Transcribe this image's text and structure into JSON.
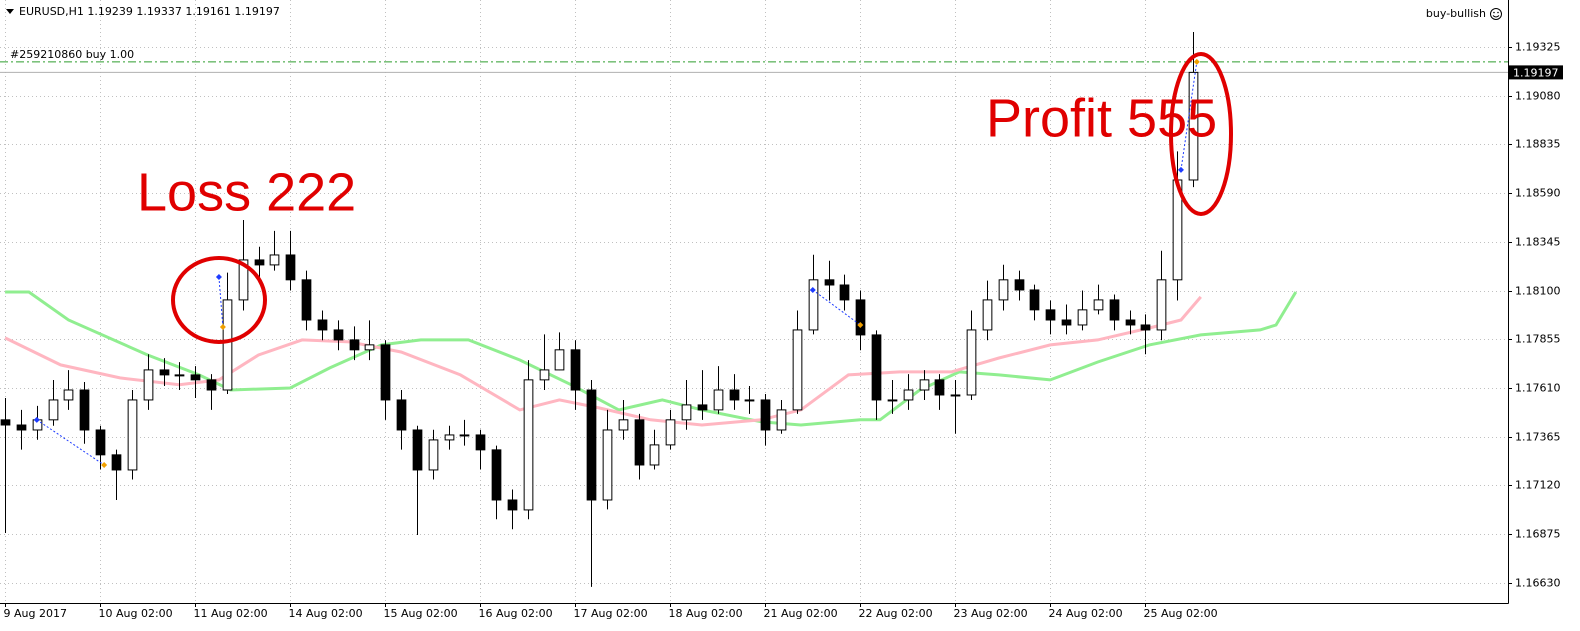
{
  "chart_data": {
    "type": "candlestick",
    "title": "EURUSD,H1  1.19239 1.19337 1.19161 1.19197",
    "order_label": "#259210860 buy 1.00",
    "expert_label": "buy-bullish",
    "annotations": [
      "Loss 222",
      "Profit 555"
    ],
    "order_level": 1.1925,
    "last_price": 1.19197,
    "grid": true,
    "xlim": [
      -1.3,
      379.6
    ],
    "ylim": [
      1.16529,
      1.19561
    ],
    "xticks": [
      {
        "value": 0,
        "label": "9 Aug 2017"
      },
      {
        "value": 24,
        "label": "10 Aug 02:00"
      },
      {
        "value": 48,
        "label": "11 Aug 02:00"
      },
      {
        "value": 72,
        "label": "14 Aug 02:00"
      },
      {
        "value": 96,
        "label": "15 Aug 02:00"
      },
      {
        "value": 120,
        "label": "16 Aug 02:00"
      },
      {
        "value": 144,
        "label": "17 Aug 02:00"
      },
      {
        "value": 168,
        "label": "18 Aug 02:00"
      },
      {
        "value": 192,
        "label": "21 Aug 02:00"
      },
      {
        "value": 216,
        "label": "22 Aug 02:00"
      },
      {
        "value": 240,
        "label": "23 Aug 02:00"
      },
      {
        "value": 264,
        "label": "24 Aug 02:00"
      },
      {
        "value": 288,
        "label": "25 Aug 02:00"
      }
    ],
    "yticks": [
      1.19325,
      {
        "value": 1.1908,
        "label": "1.19080"
      },
      1.18835,
      {
        "value": 1.1859,
        "label": "1.18590"
      },
      1.18345,
      {
        "value": 1.181,
        "label": "1.18100"
      },
      1.17855,
      {
        "value": 1.1761,
        "label": "1.17610"
      },
      1.17365,
      {
        "value": 1.1712,
        "label": "1.17120"
      },
      1.16875,
      {
        "value": 1.1663,
        "label": "1.16630"
      }
    ],
    "x": [
      0,
      4,
      8,
      12,
      16,
      20,
      24,
      28,
      32,
      36,
      40,
      44,
      48,
      52,
      56,
      60,
      64,
      68,
      72,
      76,
      80,
      84,
      88,
      92,
      96,
      100,
      104,
      108,
      112,
      116,
      120,
      124,
      128,
      132,
      136,
      140,
      144,
      148,
      152,
      156,
      160,
      164,
      168,
      172,
      176,
      180,
      184,
      188,
      192,
      196,
      200,
      204,
      208,
      212,
      216,
      220,
      224,
      228,
      232,
      236,
      240,
      244,
      248,
      252,
      256,
      260,
      264,
      268,
      272,
      276,
      280,
      284,
      288,
      292,
      296,
      300
    ],
    "open": [
      1.1745,
      1.17424,
      1.17399,
      1.1745,
      1.1755,
      1.176,
      1.17399,
      1.17274,
      1.17198,
      1.1755,
      1.17701,
      1.17676,
      1.17676,
      1.17651,
      1.176,
      1.18053,
      1.18254,
      1.18229,
      1.18279,
      1.18154,
      1.17952,
      1.17902,
      1.17852,
      1.17802,
      1.17827,
      1.1755,
      1.17399,
      1.17198,
      1.17349,
      1.17374,
      1.17374,
      1.17299,
      1.17047,
      1.16997,
      1.17651,
      1.17701,
      1.17802,
      1.176,
      1.17047,
      1.17399,
      1.1745,
      1.17223,
      1.17324,
      1.1745,
      1.17525,
      1.175,
      1.176,
      1.1755,
      1.1755,
      1.17399,
      1.175,
      1.17902,
      1.18154,
      1.18128,
      1.18053,
      1.17877,
      1.1755,
      1.1755,
      1.176,
      1.17651,
      1.17575,
      1.17575,
      1.17902,
      1.18053,
      1.18154,
      1.18103,
      1.18003,
      1.17952,
      1.17927,
      1.18003,
      1.18053,
      1.17952,
      1.17927,
      1.17902,
      1.18154,
      1.18656
    ],
    "high": [
      1.1756,
      1.175,
      1.1752,
      1.1765,
      1.177,
      1.1764,
      1.1742,
      1.173,
      1.176,
      1.1778,
      1.1776,
      1.1774,
      1.1772,
      1.1768,
      1.1819,
      1.18455,
      1.1832,
      1.184,
      1.184,
      1.182,
      1.18,
      1.1795,
      1.1792,
      1.1795,
      1.1785,
      1.176,
      1.1742,
      1.174,
      1.1742,
      1.1745,
      1.174,
      1.1732,
      1.171,
      1.1775,
      1.1788,
      1.1789,
      1.1785,
      1.1765,
      1.175,
      1.1755,
      1.1748,
      1.174,
      1.175,
      1.1765,
      1.177,
      1.1772,
      1.1768,
      1.1762,
      1.1758,
      1.1755,
      1.18,
      1.1828,
      1.1825,
      1.1818,
      1.181,
      1.179,
      1.1765,
      1.1768,
      1.177,
      1.1768,
      1.1765,
      1.18,
      1.1815,
      1.1823,
      1.182,
      1.1813,
      1.1805,
      1.1803,
      1.181,
      1.1813,
      1.1808,
      1.18,
      1.1798,
      1.183,
      1.188,
      1.194
    ],
    "low": [
      1.16881,
      1.173,
      1.1735,
      1.1742,
      1.175,
      1.1733,
      1.172,
      1.17047,
      1.1715,
      1.175,
      1.1762,
      1.176,
      1.1756,
      1.175,
      1.1758,
      1.18,
      1.1815,
      1.182,
      1.181,
      1.179,
      1.1785,
      1.178,
      1.1775,
      1.1775,
      1.1745,
      1.173,
      1.16871,
      1.1715,
      1.173,
      1.1732,
      1.172,
      1.1695,
      1.169,
      1.1695,
      1.176,
      1.177,
      1.175,
      1.1661,
      1.17,
      1.1735,
      1.1715,
      1.172,
      1.173,
      1.174,
      1.1745,
      1.1748,
      1.175,
      1.1748,
      1.1732,
      1.1738,
      1.1748,
      1.1788,
      1.1805,
      1.18,
      1.178,
      1.1745,
      1.1748,
      1.175,
      1.1755,
      1.175,
      1.1738,
      1.1755,
      1.1785,
      1.18,
      1.1805,
      1.1795,
      1.1788,
      1.1788,
      1.179,
      1.1798,
      1.179,
      1.1788,
      1.1778,
      1.1785,
      1.1805,
      1.1862
    ],
    "close": [
      1.17424,
      1.17399,
      1.1745,
      1.1755,
      1.176,
      1.17399,
      1.17274,
      1.17198,
      1.1755,
      1.17701,
      1.17676,
      1.17676,
      1.17651,
      1.176,
      1.18053,
      1.18254,
      1.18229,
      1.18279,
      1.18154,
      1.17952,
      1.17902,
      1.17852,
      1.17802,
      1.17827,
      1.1755,
      1.17399,
      1.17198,
      1.17349,
      1.17374,
      1.17374,
      1.17299,
      1.17047,
      1.16997,
      1.17651,
      1.17701,
      1.17802,
      1.176,
      1.17047,
      1.17399,
      1.1745,
      1.17223,
      1.17324,
      1.1745,
      1.17525,
      1.175,
      1.176,
      1.1755,
      1.1755,
      1.17399,
      1.175,
      1.17902,
      1.18154,
      1.18128,
      1.18053,
      1.17877,
      1.1755,
      1.1755,
      1.176,
      1.17651,
      1.17575,
      1.17575,
      1.17902,
      1.18053,
      1.18154,
      1.18103,
      1.18003,
      1.17952,
      1.17927,
      1.18003,
      1.18053,
      1.17952,
      1.17927,
      1.17902,
      1.18154,
      1.18656,
      1.19197
    ],
    "bull_color": "#ffffff",
    "bear_color": "#000000",
    "moving_averages": [
      {
        "color": "#90ee90",
        "x": [
          0,
          6,
          16,
          36,
          49,
          57,
          72,
          82,
          95,
          105,
          117,
          130,
          143,
          155,
          166,
          176,
          191,
          201,
          216,
          221,
          231,
          241,
          251,
          264,
          276,
          289,
          302,
          317,
          321,
          326
        ],
        "values": [
          1.18093,
          1.18093,
          1.17952,
          1.17776,
          1.17676,
          1.176,
          1.1761,
          1.17711,
          1.17827,
          1.17852,
          1.17852,
          1.17751,
          1.17626,
          1.175,
          1.1755,
          1.175,
          1.1744,
          1.17424,
          1.1745,
          1.1745,
          1.176,
          1.17691,
          1.17676,
          1.17651,
          1.17741,
          1.17827,
          1.17877,
          1.17902,
          1.17927,
          1.18093
        ]
      },
      {
        "color": "#ffb6c1",
        "x": [
          0,
          14,
          29,
          44,
          54,
          64,
          75,
          87,
          100,
          115,
          130,
          140,
          150,
          163,
          176,
          191,
          201,
          213,
          226,
          239,
          251,
          264,
          276,
          289,
          297,
          302
        ],
        "values": [
          1.17862,
          1.17726,
          1.17661,
          1.17626,
          1.17651,
          1.17776,
          1.17852,
          1.17842,
          1.17791,
          1.17676,
          1.175,
          1.1755,
          1.1751,
          1.1745,
          1.17424,
          1.1745,
          1.175,
          1.17676,
          1.17691,
          1.17691,
          1.17761,
          1.17827,
          1.17852,
          1.17912,
          1.17952,
          1.18068
        ]
      }
    ],
    "trades": [
      {
        "open_x": 8,
        "open_price": 1.1745,
        "close_x": 25,
        "close_price": 1.17223
      },
      {
        "open_x": 54,
        "open_price": 1.18168,
        "close_x": 55,
        "close_price": 1.17917
      },
      {
        "open_x": 204,
        "open_price": 1.18103,
        "close_x": 216,
        "close_price": 1.17927
      },
      {
        "open_x": 297,
        "open_price": 1.18707,
        "close_x": 301,
        "close_price": 1.1925
      }
    ]
  }
}
